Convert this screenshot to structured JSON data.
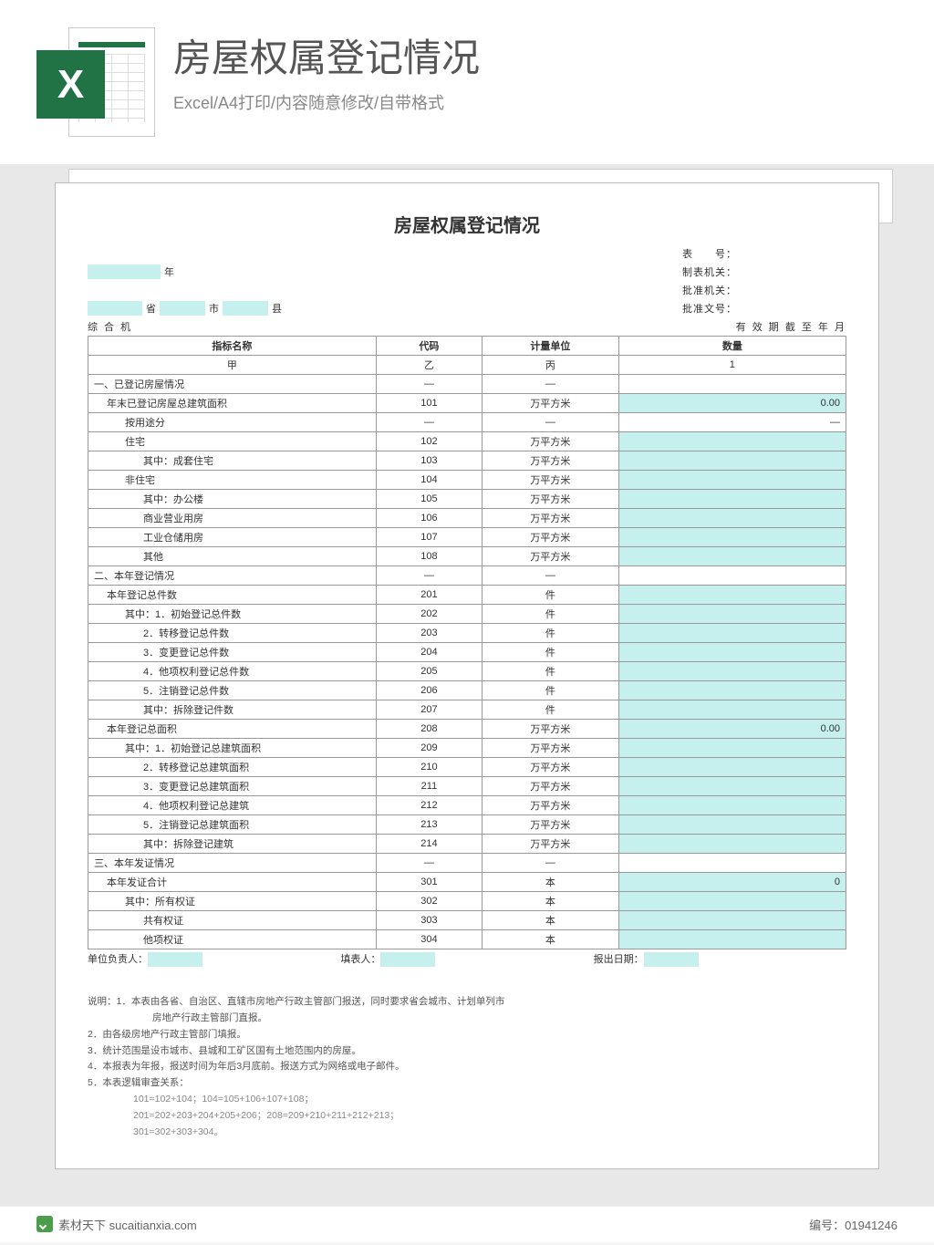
{
  "header": {
    "title": "房屋权属登记情况",
    "subtitle": "Excel/A4打印/内容随意修改/自带格式",
    "icon_letter": "X"
  },
  "doc": {
    "title": "房屋权属登记情况",
    "meta_year_suffix": "年",
    "meta_right": [
      "表　　号：",
      "制表机关：",
      "批准机关：",
      "批准文号："
    ],
    "region_labels": {
      "province": "省",
      "city": "市",
      "county": "县"
    },
    "org_left": "综 合 机",
    "org_right": "有 效 期 截 至 年 月",
    "table_header": {
      "c1": "指标名称",
      "c2": "代码",
      "c3": "计量单位",
      "c4": "数量"
    },
    "table_sub": {
      "c1": "甲",
      "c2": "乙",
      "c3": "丙",
      "c4": "1"
    },
    "rows": [
      {
        "name": "一、已登记房屋情况",
        "code": "—",
        "unit": "—",
        "qty": "",
        "cls": "left",
        "hl": false
      },
      {
        "name": "年末已登记房屋总建筑面积",
        "code": "101",
        "unit": "万平方米",
        "qty": "0.00",
        "cls": "indent1",
        "hl": true
      },
      {
        "name": "按用途分",
        "code": "—",
        "unit": "—",
        "qty": "—",
        "cls": "indent2",
        "hl": false
      },
      {
        "name": "住宅",
        "code": "102",
        "unit": "万平方米",
        "qty": "",
        "cls": "indent2",
        "hl": true
      },
      {
        "name": "其中：成套住宅",
        "code": "103",
        "unit": "万平方米",
        "qty": "",
        "cls": "indent3",
        "hl": true
      },
      {
        "name": "非住宅",
        "code": "104",
        "unit": "万平方米",
        "qty": "",
        "cls": "indent2",
        "hl": true
      },
      {
        "name": "其中：办公楼",
        "code": "105",
        "unit": "万平方米",
        "qty": "",
        "cls": "indent3",
        "hl": true
      },
      {
        "name": "商业营业用房",
        "code": "106",
        "unit": "万平方米",
        "qty": "",
        "cls": "indent3",
        "hl": true
      },
      {
        "name": "工业仓储用房",
        "code": "107",
        "unit": "万平方米",
        "qty": "",
        "cls": "indent3",
        "hl": true
      },
      {
        "name": "其他",
        "code": "108",
        "unit": "万平方米",
        "qty": "",
        "cls": "indent3",
        "hl": true
      },
      {
        "name": "二、本年登记情况",
        "code": "—",
        "unit": "—",
        "qty": "",
        "cls": "left",
        "hl": false
      },
      {
        "name": "本年登记总件数",
        "code": "201",
        "unit": "件",
        "qty": "",
        "cls": "indent1",
        "hl": true
      },
      {
        "name": "其中：1．初始登记总件数",
        "code": "202",
        "unit": "件",
        "qty": "",
        "cls": "indent2",
        "hl": true
      },
      {
        "name": "2．转移登记总件数",
        "code": "203",
        "unit": "件",
        "qty": "",
        "cls": "indent3",
        "hl": true
      },
      {
        "name": "3．变更登记总件数",
        "code": "204",
        "unit": "件",
        "qty": "",
        "cls": "indent3",
        "hl": true
      },
      {
        "name": "4．他项权利登记总件数",
        "code": "205",
        "unit": "件",
        "qty": "",
        "cls": "indent3",
        "hl": true
      },
      {
        "name": "5．注销登记总件数",
        "code": "206",
        "unit": "件",
        "qty": "",
        "cls": "indent3",
        "hl": true
      },
      {
        "name": "其中：拆除登记件数",
        "code": "207",
        "unit": "件",
        "qty": "",
        "cls": "indent3",
        "hl": true
      },
      {
        "name": "本年登记总面积",
        "code": "208",
        "unit": "万平方米",
        "qty": "0.00",
        "cls": "indent1",
        "hl": true
      },
      {
        "name": "其中：1．初始登记总建筑面积",
        "code": "209",
        "unit": "万平方米",
        "qty": "",
        "cls": "indent2",
        "hl": true
      },
      {
        "name": "2．转移登记总建筑面积",
        "code": "210",
        "unit": "万平方米",
        "qty": "",
        "cls": "indent3",
        "hl": true
      },
      {
        "name": "3．变更登记总建筑面积",
        "code": "211",
        "unit": "万平方米",
        "qty": "",
        "cls": "indent3",
        "hl": true
      },
      {
        "name": "4．他项权利登记总建筑",
        "code": "212",
        "unit": "万平方米",
        "qty": "",
        "cls": "indent3",
        "hl": true
      },
      {
        "name": "5．注销登记总建筑面积",
        "code": "213",
        "unit": "万平方米",
        "qty": "",
        "cls": "indent3",
        "hl": true
      },
      {
        "name": "其中：拆除登记建筑",
        "code": "214",
        "unit": "万平方米",
        "qty": "",
        "cls": "indent3",
        "hl": true
      },
      {
        "name": "三、本年发证情况",
        "code": "—",
        "unit": "—",
        "qty": "",
        "cls": "left",
        "hl": false
      },
      {
        "name": "本年发证合计",
        "code": "301",
        "unit": "本",
        "qty": "0",
        "cls": "indent1",
        "hl": true
      },
      {
        "name": "其中：所有权证",
        "code": "302",
        "unit": "本",
        "qty": "",
        "cls": "indent2",
        "hl": true
      },
      {
        "name": "共有权证",
        "code": "303",
        "unit": "本",
        "qty": "",
        "cls": "indent3",
        "hl": true
      },
      {
        "name": "他项权证",
        "code": "304",
        "unit": "本",
        "qty": "",
        "cls": "indent3",
        "hl": true
      }
    ],
    "footer": {
      "l1": "单位负责人：",
      "l2": "填表人：",
      "l3": "报出日期："
    },
    "notes_title": "说明：",
    "notes": [
      "1．本表由各省、自治区、直辖市房地产行政主管部门报送，同时要求省会城市、计划单列市",
      "　　房地产行政主管部门直报。",
      "2．由各级房地产行政主管部门填报。",
      "3．统计范围是设市城市、县城和工矿区国有土地范围内的房屋。",
      "4．本报表为年报，报送时间为年后3月底前。报送方式为网络或电子邮件。",
      "5．本表逻辑审查关系："
    ],
    "formulas": [
      "101=102+104；104=105+106+107+108；",
      "201=202+203+204+205+206；208=209+210+211+212+213；",
      "301=302+303+304。"
    ]
  },
  "watermark": {
    "site": "素材天下 sucaitianxia.com",
    "id_label": "编号：",
    "id": "01941246"
  },
  "colors": {
    "highlight": "#c5f0ed",
    "excel_green": "#217346",
    "border": "#999"
  }
}
